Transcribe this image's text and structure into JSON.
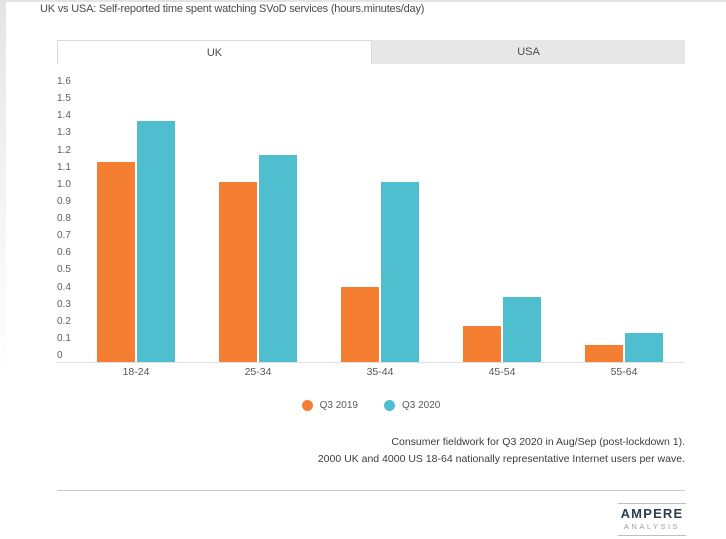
{
  "page": {
    "title": "UK vs USA: Self-reported time spent watching SVoD services (hours.minutes/day)"
  },
  "tabs": [
    {
      "label": "UK",
      "active": true
    },
    {
      "label": "USA",
      "active": false
    }
  ],
  "chart_data": {
    "type": "bar",
    "title": "UK vs USA: Self-reported time spent watching SVoD services (hours.minutes/day)",
    "categories": [
      "18-24",
      "25-34",
      "35-44",
      "45-54",
      "55-64"
    ],
    "series": [
      {
        "name": "Q3 2019",
        "color": "#F47E31",
        "values": [
          1.17,
          1.05,
          0.44,
          0.21,
          0.1
        ]
      },
      {
        "name": "Q3 2020",
        "color": "#4FBFD0",
        "values": [
          1.41,
          1.21,
          1.05,
          0.38,
          0.17
        ]
      }
    ],
    "xlabel": "",
    "ylabel": "",
    "ylim": [
      0,
      1.6
    ],
    "ytick_step": 0.1,
    "grid": false,
    "legend_position": "bottom"
  },
  "footnotes": [
    "Consumer fieldwork for Q3 2020 in Aug/Sep (post-lockdown 1).",
    "2000 UK and 4000 US 18-64 nationally representative Internet users per wave."
  ],
  "logo": {
    "wordmark": "AMPERE",
    "subtext": "ANALYSIS"
  }
}
